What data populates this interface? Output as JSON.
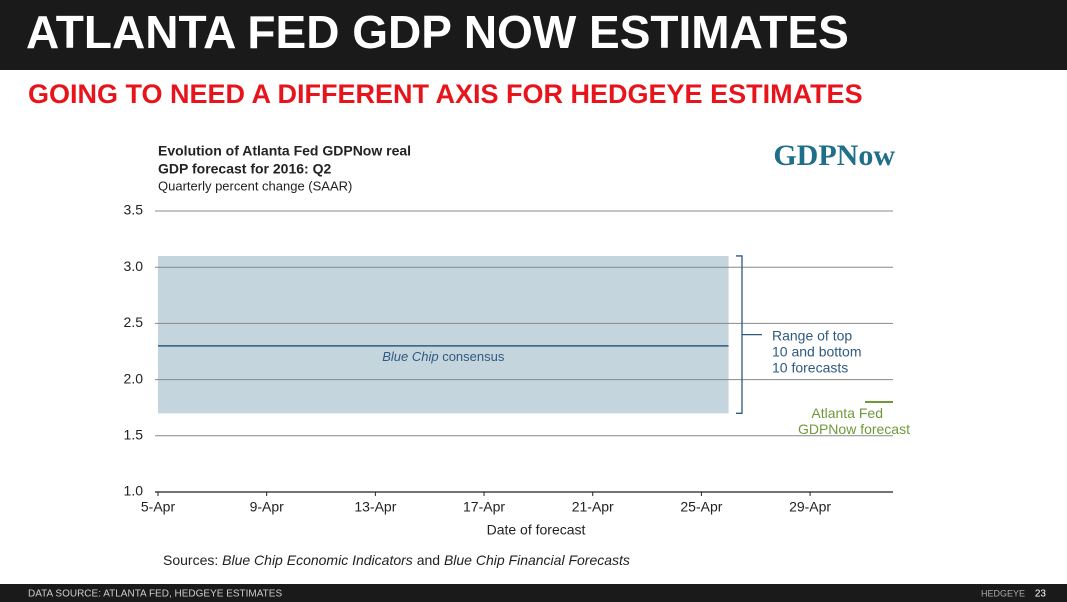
{
  "header": {
    "title": "ATLANTA FED GDP NOW ESTIMATES",
    "subtitle": "GOING TO NEED A DIFFERENT AXIS FOR HEDGEYE ESTIMATES"
  },
  "footer": {
    "source": "DATA SOURCE: ATLANTA FED, HEDGEYE ESTIMATES",
    "brand": "HEDGEYE",
    "page": "23"
  },
  "chart_data": {
    "type": "line",
    "title_lines": [
      "Evolution of Atlanta Fed GDPNow real",
      "GDP forecast for 2016: Q2"
    ],
    "subtitle": "Quarterly percent change (SAAR)",
    "logo": "GDPNow",
    "x_label": "Date of forecast",
    "sources": [
      "Sources:",
      "Blue Chip Economic Indicators",
      "and",
      "Blue Chip Financial Forecasts"
    ],
    "xlim": [
      5,
      32
    ],
    "xticks": [
      {
        "value": 5,
        "label": "5-Apr"
      },
      {
        "value": 9,
        "label": "9-Apr"
      },
      {
        "value": 13,
        "label": "13-Apr"
      },
      {
        "value": 17,
        "label": "17-Apr"
      },
      {
        "value": 21,
        "label": "21-Apr"
      },
      {
        "value": 25,
        "label": "25-Apr"
      },
      {
        "value": 29,
        "label": "29-Apr"
      }
    ],
    "ylim": [
      1,
      3.5
    ],
    "yticks": [
      {
        "value": 1,
        "label": "1.0"
      },
      1.5,
      {
        "value": 2,
        "label": "2.0"
      },
      2.5,
      {
        "value": 3,
        "label": "3.0"
      },
      3.5
    ],
    "grid": true,
    "range": {
      "label_lines": [
        "Range of top",
        "10 and bottom",
        "10 forecasts"
      ],
      "x": [
        5,
        26
      ],
      "low": 1.7,
      "high": 3.1,
      "color": "#c5d5de",
      "label_color": "#2e5a80"
    },
    "consensus": {
      "name_parts": [
        "Blue Chip",
        "consensus"
      ],
      "x": [
        5,
        26
      ],
      "values": [
        2.3,
        2.3
      ],
      "color": "#2e5a80"
    },
    "series": [
      {
        "name": "Atlanta Fed GDPNow forecast",
        "color": "#6f9a3a",
        "x": [],
        "values": []
      }
    ]
  }
}
